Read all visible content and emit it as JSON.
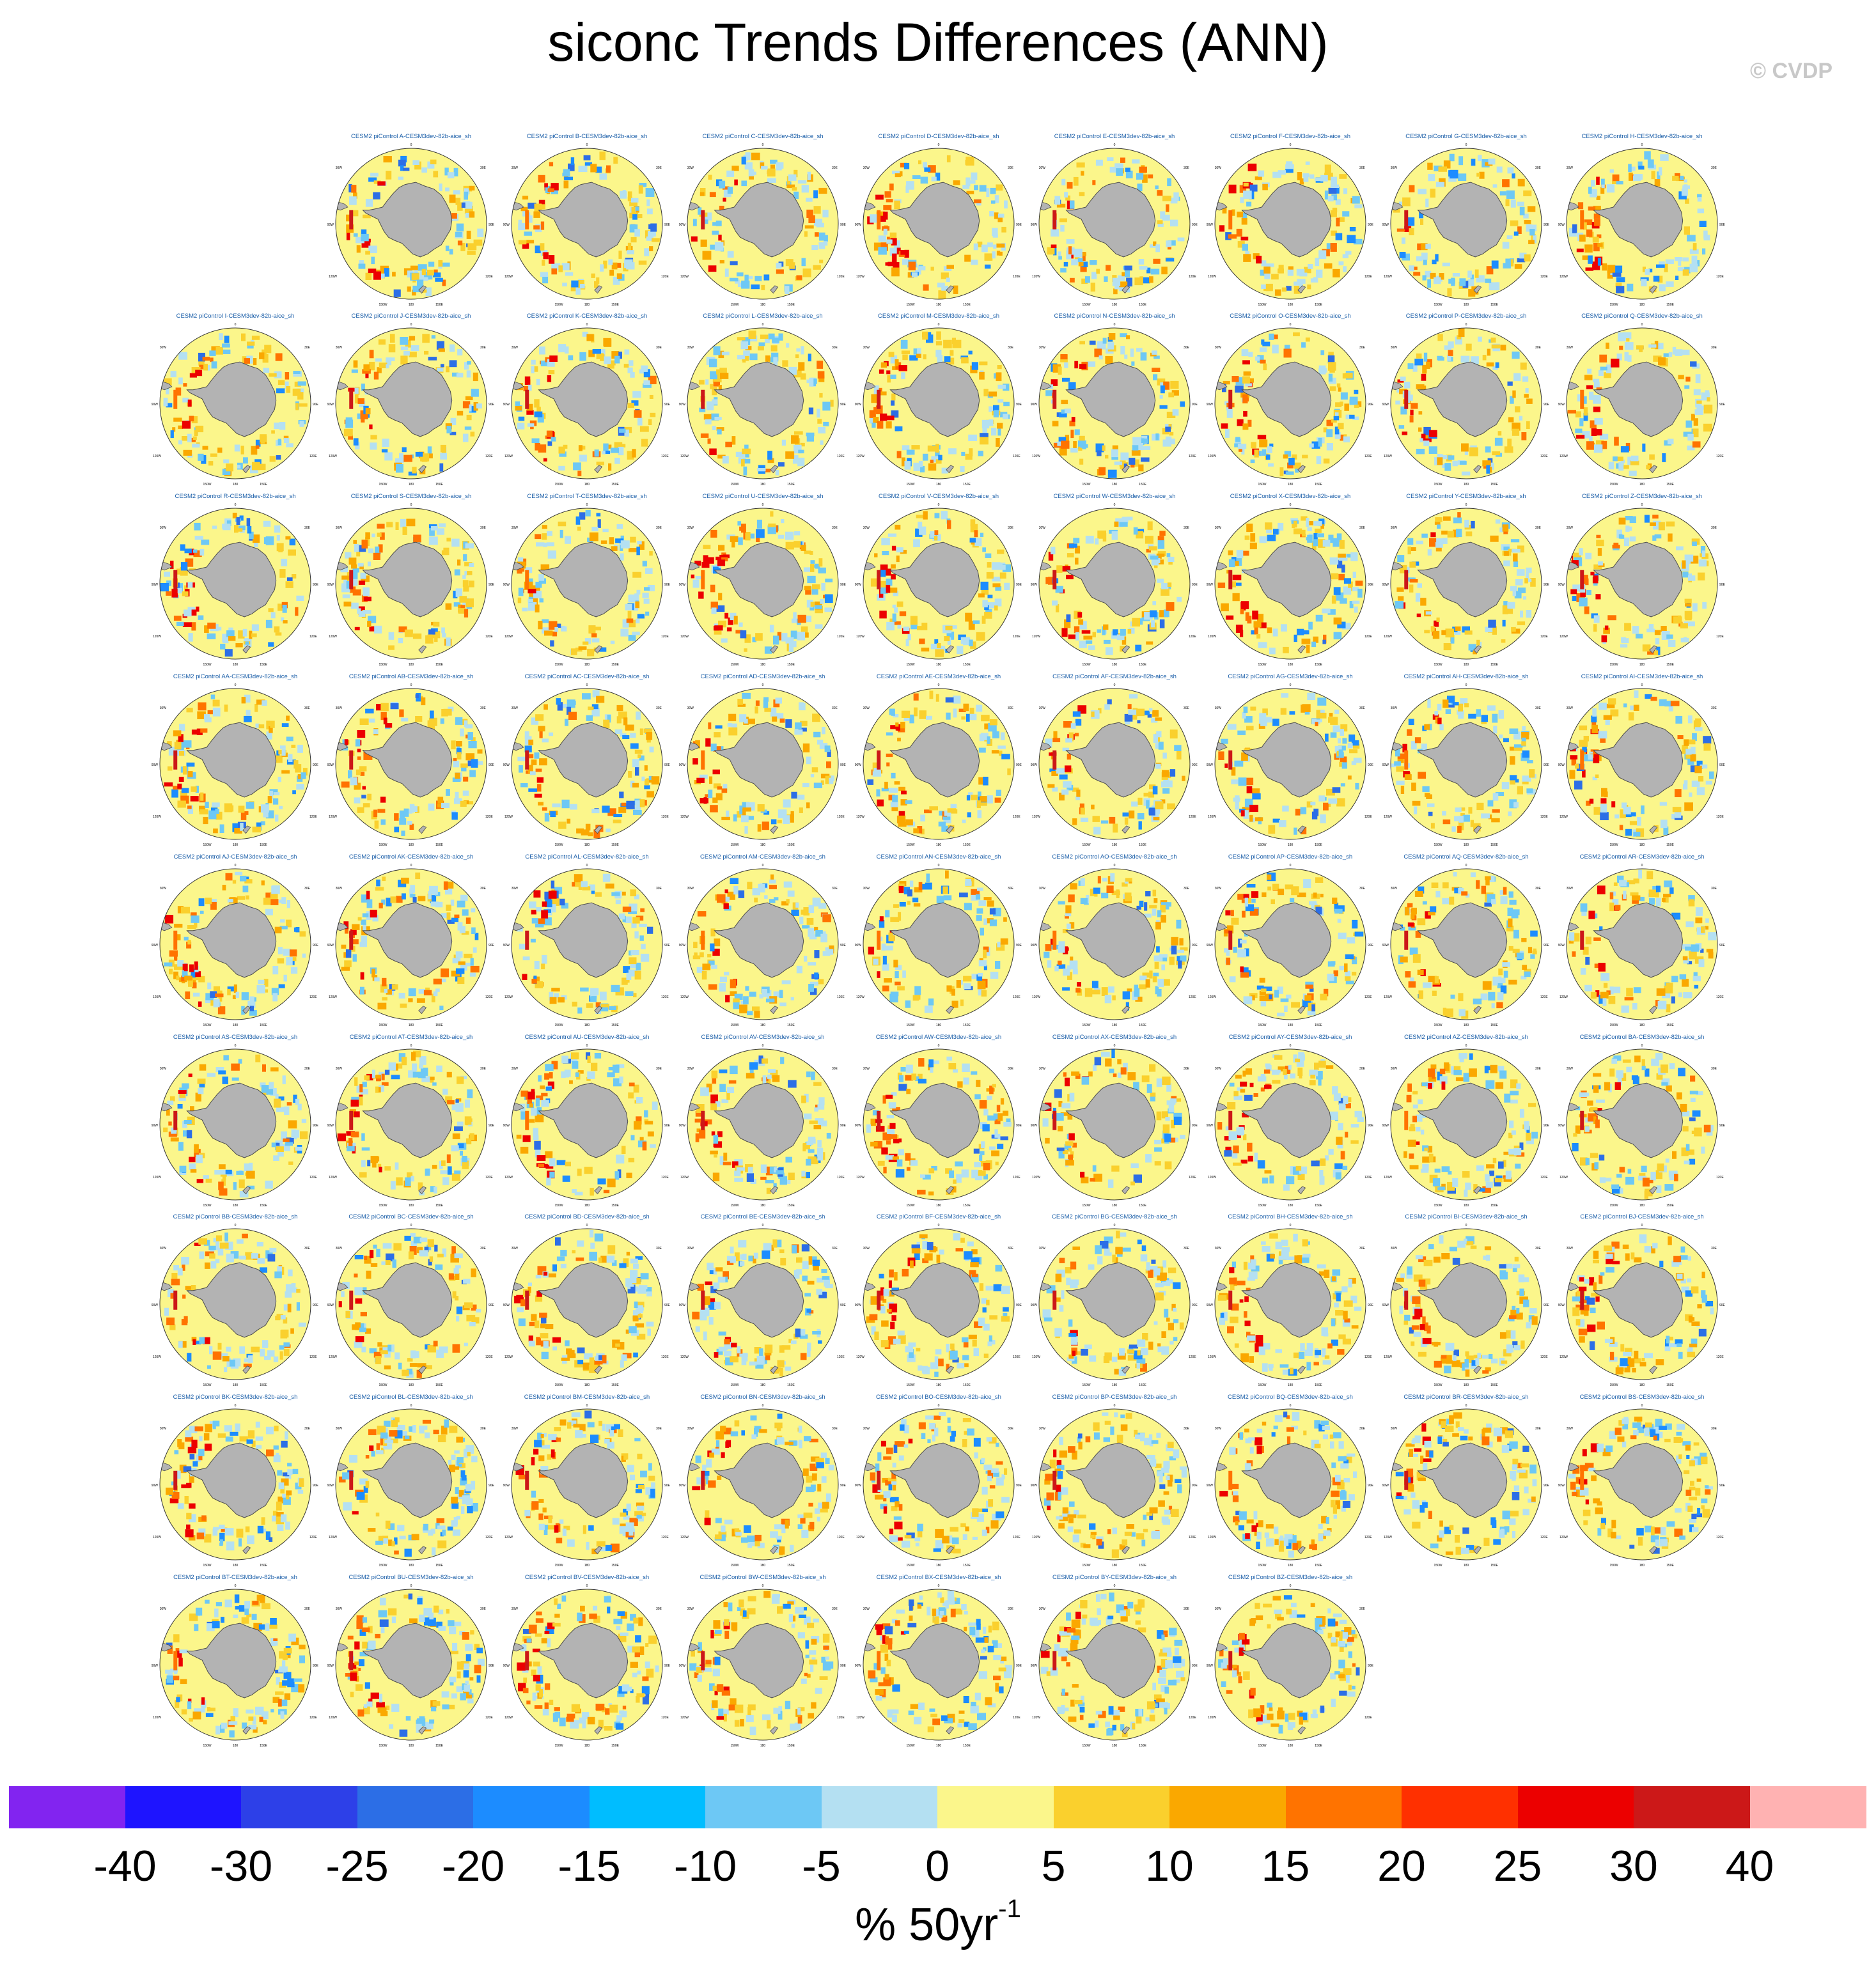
{
  "title": "siconc Trends Differences (ANN)",
  "credit": "© CVDP",
  "panel_titles": [
    "CESM2 piControl A-CESM3dev-82b-aice_sh",
    "CESM2 piControl B-CESM3dev-82b-aice_sh",
    "CESM2 piControl C-CESM3dev-82b-aice_sh",
    "CESM2 piControl D-CESM3dev-82b-aice_sh",
    "CESM2 piControl E-CESM3dev-82b-aice_sh",
    "CESM2 piControl F-CESM3dev-82b-aice_sh",
    "CESM2 piControl G-CESM3dev-82b-aice_sh",
    "CESM2 piControl H-CESM3dev-82b-aice_sh",
    "CESM2 piControl I-CESM3dev-82b-aice_sh",
    "CESM2 piControl J-CESM3dev-82b-aice_sh",
    "CESM2 piControl K-CESM3dev-82b-aice_sh",
    "CESM2 piControl L-CESM3dev-82b-aice_sh",
    "CESM2 piControl M-CESM3dev-82b-aice_sh",
    "CESM2 piControl N-CESM3dev-82b-aice_sh",
    "CESM2 piControl O-CESM3dev-82b-aice_sh",
    "CESM2 piControl P-CESM3dev-82b-aice_sh",
    "CESM2 piControl Q-CESM3dev-82b-aice_sh",
    "CESM2 piControl R-CESM3dev-82b-aice_sh",
    "CESM2 piControl S-CESM3dev-82b-aice_sh",
    "CESM2 piControl T-CESM3dev-82b-aice_sh",
    "CESM2 piControl U-CESM3dev-82b-aice_sh",
    "CESM2 piControl V-CESM3dev-82b-aice_sh",
    "CESM2 piControl W-CESM3dev-82b-aice_sh",
    "CESM2 piControl X-CESM3dev-82b-aice_sh",
    "CESM2 piControl Y-CESM3dev-82b-aice_sh",
    "CESM2 piControl Z-CESM3dev-82b-aice_sh",
    "CESM2 piControl AA-CESM3dev-82b-aice_sh",
    "CESM2 piControl AB-CESM3dev-82b-aice_sh",
    "CESM2 piControl AC-CESM3dev-82b-aice_sh",
    "CESM2 piControl AD-CESM3dev-82b-aice_sh",
    "CESM2 piControl AE-CESM3dev-82b-aice_sh",
    "CESM2 piControl AF-CESM3dev-82b-aice_sh",
    "CESM2 piControl AG-CESM3dev-82b-aice_sh",
    "CESM2 piControl AH-CESM3dev-82b-aice_sh",
    "CESM2 piControl AI-CESM3dev-82b-aice_sh",
    "CESM2 piControl AJ-CESM3dev-82b-aice_sh",
    "CESM2 piControl AK-CESM3dev-82b-aice_sh",
    "CESM2 piControl AL-CESM3dev-82b-aice_sh",
    "CESM2 piControl AM-CESM3dev-82b-aice_sh",
    "CESM2 piControl AN-CESM3dev-82b-aice_sh",
    "CESM2 piControl AO-CESM3dev-82b-aice_sh",
    "CESM2 piControl AP-CESM3dev-82b-aice_sh",
    "CESM2 piControl AQ-CESM3dev-82b-aice_sh",
    "CESM2 piControl AR-CESM3dev-82b-aice_sh",
    "CESM2 piControl AS-CESM3dev-82b-aice_sh",
    "CESM2 piControl AT-CESM3dev-82b-aice_sh",
    "CESM2 piControl AU-CESM3dev-82b-aice_sh",
    "CESM2 piControl AV-CESM3dev-82b-aice_sh",
    "CESM2 piControl AW-CESM3dev-82b-aice_sh",
    "CESM2 piControl AX-CESM3dev-82b-aice_sh",
    "CESM2 piControl AY-CESM3dev-82b-aice_sh",
    "CESM2 piControl AZ-CESM3dev-82b-aice_sh",
    "CESM2 piControl BA-CESM3dev-82b-aice_sh",
    "CESM2 piControl BB-CESM3dev-82b-aice_sh",
    "CESM2 piControl BC-CESM3dev-82b-aice_sh",
    "CESM2 piControl BD-CESM3dev-82b-aice_sh",
    "CESM2 piControl BE-CESM3dev-82b-aice_sh",
    "CESM2 piControl BF-CESM3dev-82b-aice_sh",
    "CESM2 piControl BG-CESM3dev-82b-aice_sh",
    "CESM2 piControl BH-CESM3dev-82b-aice_sh",
    "CESM2 piControl BI-CESM3dev-82b-aice_sh",
    "CESM2 piControl BJ-CESM3dev-82b-aice_sh",
    "CESM2 piControl BK-CESM3dev-82b-aice_sh",
    "CESM2 piControl BL-CESM3dev-82b-aice_sh",
    "CESM2 piControl BM-CESM3dev-82b-aice_sh",
    "CESM2 piControl BN-CESM3dev-82b-aice_sh",
    "CESM2 piControl BO-CESM3dev-82b-aice_sh",
    "CESM2 piControl BP-CESM3dev-82b-aice_sh",
    "CESM2 piControl BQ-CESM3dev-82b-aice_sh",
    "CESM2 piControl BR-CESM3dev-82b-aice_sh",
    "CESM2 piControl BS-CESM3dev-82b-aice_sh",
    "CESM2 piControl BT-CESM3dev-82b-aice_sh",
    "CESM2 piControl BU-CESM3dev-82b-aice_sh",
    "CESM2 piControl BV-CESM3dev-82b-aice_sh",
    "CESM2 piControl BW-CESM3dev-82b-aice_sh",
    "CESM2 piControl BX-CESM3dev-82b-aice_sh",
    "CESM2 piControl BY-CESM3dev-82b-aice_sh",
    "CESM2 piControl BZ-CESM3dev-82b-aice_sh"
  ],
  "map_labels": {
    "top": "0",
    "left_upper": "30W",
    "right_upper": "30E",
    "left_mid": "90W",
    "right_mid": "90E",
    "left_lower": "120W",
    "right_lower": "120E",
    "bottom_left": "150W",
    "bottom": "180",
    "bottom_right": "150E"
  },
  "colorbar": {
    "tick_labels": [
      "-40",
      "-30",
      "-25",
      "-20",
      "-15",
      "-10",
      "-5",
      "0",
      "5",
      "10",
      "15",
      "20",
      "25",
      "30",
      "40"
    ],
    "colors": [
      "#8224f0",
      "#1e14ff",
      "#2d40e8",
      "#2c6ee6",
      "#1c8cff",
      "#00bdff",
      "#6dc8f5",
      "#b4e0f2",
      "#fbf68b",
      "#fad02d",
      "#faa800",
      "#ff7300",
      "#ff3000",
      "#ec0000",
      "#cc1818",
      "#ffb2b2"
    ],
    "label": "% 50yr",
    "label_superscript": "-1"
  },
  "chart_data": {
    "type": "heatmap",
    "title": "siconc Trends Differences (ANN)",
    "panel_count": 78,
    "projection": "south polar stereographic",
    "colorbar_levels": [
      -40,
      -30,
      -25,
      -20,
      -15,
      -10,
      -5,
      0,
      5,
      10,
      15,
      20,
      25,
      30,
      40
    ],
    "units": "% 50yr-1"
  }
}
